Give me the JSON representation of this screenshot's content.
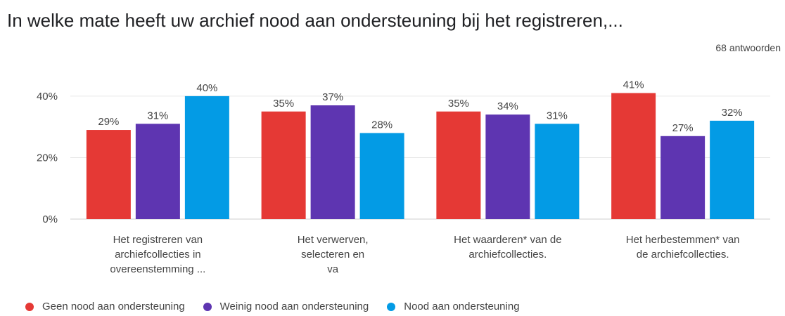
{
  "chart_data": {
    "type": "bar",
    "title": "In welke mate heeft uw archief nood aan ondersteuning bij het registreren,...",
    "subtitle": "68 antwoorden",
    "categories": [
      [
        "Het registreren van",
        "archiefcollecties in",
        "overeenstemming ..."
      ],
      [
        "Het verwerven,",
        "selecteren en",
        "va"
      ],
      [
        "Het waarderen* van de",
        "archiefcollecties."
      ],
      [
        "Het herbestemmen* van",
        "de archiefcollecties."
      ]
    ],
    "series": [
      {
        "name": "Geen nood aan ondersteuning",
        "color": "#e53935",
        "values": [
          29,
          35,
          35,
          41
        ]
      },
      {
        "name": "Weinig nood aan ondersteuning",
        "color": "#5e35b1",
        "values": [
          31,
          37,
          34,
          27
        ]
      },
      {
        "name": "Nood aan ondersteuning",
        "color": "#039be5",
        "values": [
          40,
          28,
          31,
          32
        ]
      }
    ],
    "ylim": [
      0,
      45
    ],
    "yticks": [
      0,
      20,
      40
    ],
    "ytick_labels": [
      "0%",
      "20%",
      "40%"
    ],
    "value_suffix": "%",
    "grid": true,
    "legend_position": "bottom-left"
  }
}
